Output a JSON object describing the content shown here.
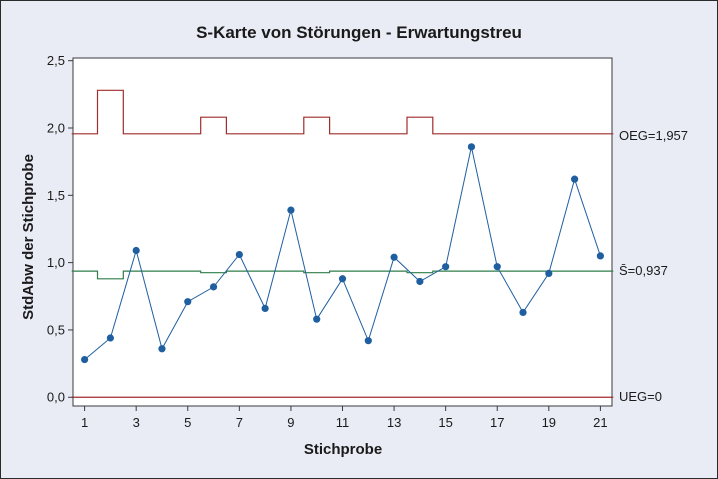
{
  "chart_data": {
    "type": "line",
    "title": "S-Karte von Störungen - Erwartungstreu",
    "xlabel": "Stichprobe",
    "ylabel": "StdAbw der Stichprobe",
    "xlim": [
      0.55,
      21.45
    ],
    "ylim": [
      -0.065,
      2.52
    ],
    "xticks": [
      1,
      3,
      5,
      7,
      9,
      11,
      13,
      15,
      17,
      19,
      21
    ],
    "xtick_labels": [
      "1",
      "3",
      "5",
      "7",
      "9",
      "11",
      "13",
      "15",
      "17",
      "19",
      "21"
    ],
    "yticks": [
      0,
      0.5,
      1.0,
      1.5,
      2.0,
      2.5
    ],
    "ytick_labels": [
      "0,0",
      "0,5",
      "1,0",
      "1,5",
      "2,0",
      "2,5"
    ],
    "x": [
      1,
      2,
      3,
      4,
      5,
      6,
      7,
      8,
      9,
      10,
      11,
      12,
      13,
      14,
      15,
      16,
      17,
      18,
      19,
      20,
      21
    ],
    "series": [
      {
        "values": [
          0.28,
          0.44,
          1.09,
          0.36,
          0.71,
          0.82,
          1.06,
          0.66,
          1.39,
          0.58,
          0.88,
          0.42,
          1.04,
          0.86,
          0.97,
          1.86,
          0.97,
          0.63,
          0.92,
          1.62,
          1.05
        ],
        "color": "#1f5fa0"
      }
    ],
    "ucl": {
      "label": "OEG=1,957",
      "value": 1.957,
      "values": [
        1.957,
        2.28,
        1.957,
        1.957,
        1.957,
        2.08,
        1.957,
        1.957,
        1.957,
        2.08,
        1.957,
        1.957,
        1.957,
        2.08,
        1.957,
        1.957,
        1.957,
        1.957,
        1.957,
        1.957,
        1.957
      ],
      "color": "#a02c2c"
    },
    "center": {
      "label": "S̄=0,937",
      "value": 0.937,
      "values": [
        0.937,
        0.88,
        0.937,
        0.937,
        0.937,
        0.925,
        0.937,
        0.937,
        0.937,
        0.925,
        0.937,
        0.937,
        0.937,
        0.925,
        0.937,
        0.937,
        0.937,
        0.937,
        0.937,
        0.937,
        0.937
      ],
      "color": "#2e7d4a"
    },
    "lcl": {
      "label": "UEG=0",
      "value": 0,
      "color": "#a02c2c"
    },
    "grid": false
  }
}
